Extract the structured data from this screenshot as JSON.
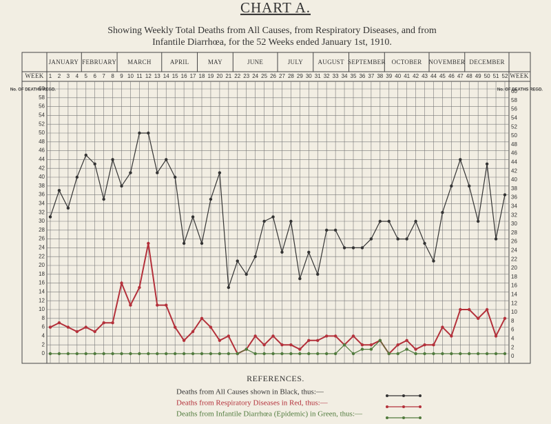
{
  "chart_data": {
    "type": "line",
    "title": "CHART A.",
    "subtitle": [
      "Showing Weekly Total Deaths from All Causes, from Respiratory Diseases, and from",
      "Infantile Diarrhœa, for the 52 Weeks ended January 1st, 1910."
    ],
    "x_label": "WEEK",
    "y_label": "No. OF DEATHS REGD.",
    "months": [
      "JANUARY",
      "FEBRUARY",
      "MARCH",
      "APRIL",
      "MAY",
      "JUNE",
      "JULY",
      "AUGUST",
      "SEPTEMBER",
      "OCTOBER",
      "NOVEMBER",
      "DECEMBER"
    ],
    "x": [
      1,
      2,
      3,
      4,
      5,
      6,
      7,
      8,
      9,
      10,
      11,
      12,
      13,
      14,
      15,
      16,
      17,
      18,
      19,
      20,
      21,
      22,
      23,
      24,
      25,
      26,
      27,
      28,
      29,
      30,
      31,
      32,
      33,
      34,
      35,
      36,
      37,
      38,
      39,
      40,
      41,
      42,
      43,
      44,
      45,
      46,
      47,
      48,
      49,
      50,
      51,
      52
    ],
    "ylim": [
      0,
      60
    ],
    "yticks": [
      0,
      2,
      4,
      6,
      8,
      10,
      12,
      14,
      16,
      18,
      20,
      22,
      24,
      26,
      28,
      30,
      32,
      34,
      36,
      38,
      40,
      42,
      44,
      46,
      48,
      50,
      52,
      54,
      56,
      58,
      60
    ],
    "grid": true,
    "legend_title": "REFERENCES.",
    "series": [
      {
        "name": "Deaths from All Causes shown in Black, thus:—",
        "color": "#333333",
        "values": [
          31,
          37,
          33,
          40,
          45,
          43,
          35,
          44,
          38,
          41,
          50,
          50,
          41,
          44,
          40,
          25,
          31,
          25,
          35,
          41,
          15,
          21,
          18,
          22,
          30,
          31,
          23,
          30,
          17,
          23,
          18,
          28,
          28,
          24,
          24,
          24,
          26,
          30,
          30,
          26,
          26,
          30,
          25,
          21,
          32,
          38,
          44,
          38,
          30,
          43,
          26,
          36
        ]
      },
      {
        "name": "Deaths from Respiratory Diseases in Red, thus:—",
        "color": "#b3303a",
        "values": [
          6,
          7,
          6,
          5,
          6,
          5,
          7,
          7,
          16,
          11,
          15,
          25,
          11,
          11,
          6,
          3,
          5,
          8,
          6,
          3,
          4,
          0,
          1,
          4,
          2,
          4,
          2,
          2,
          1,
          3,
          3,
          4,
          4,
          2,
          4,
          2,
          2,
          3,
          0,
          2,
          3,
          1,
          2,
          2,
          6,
          4,
          10,
          10,
          8,
          10,
          4,
          8
        ]
      },
      {
        "name": "Deaths from Infantile Diarrhœa (Epidemic) in Green, thus:—",
        "color": "#4f7a3c",
        "values": [
          0,
          0,
          0,
          0,
          0,
          0,
          0,
          0,
          0,
          0,
          0,
          0,
          0,
          0,
          0,
          0,
          0,
          0,
          0,
          0,
          0,
          0,
          1,
          0,
          0,
          0,
          0,
          0,
          0,
          0,
          0,
          0,
          0,
          2,
          0,
          1,
          1,
          3,
          0,
          0,
          1,
          0,
          0,
          0,
          0,
          0,
          0,
          0,
          0,
          0,
          0,
          0
        ]
      }
    ]
  }
}
